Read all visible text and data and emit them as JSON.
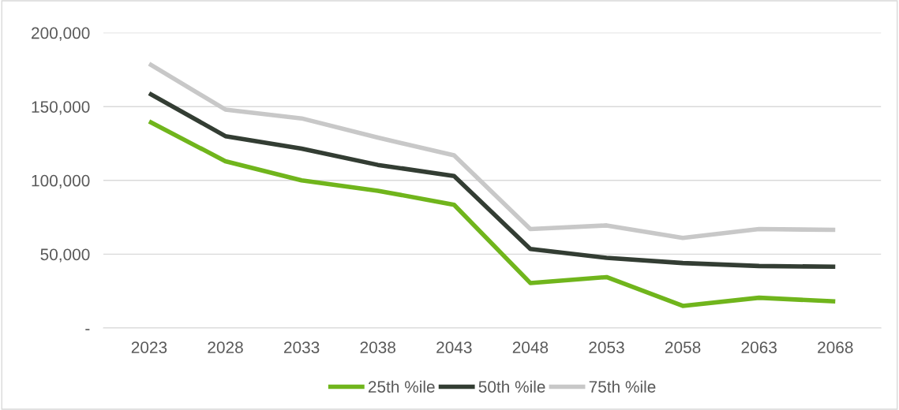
{
  "chart_data": {
    "type": "line",
    "categories": [
      "2023",
      "2028",
      "2033",
      "2038",
      "2043",
      "2048",
      "2053",
      "2058",
      "2063",
      "2068"
    ],
    "series": [
      {
        "name": "25th %ile",
        "color": "#70b51c",
        "values": [
          140000,
          113000,
          100000,
          93000,
          83500,
          30500,
          34500,
          15000,
          20500,
          18000
        ]
      },
      {
        "name": "50th %ile",
        "color": "#333d33",
        "values": [
          159000,
          130000,
          121500,
          110500,
          103000,
          53500,
          47500,
          44000,
          42000,
          41500
        ]
      },
      {
        "name": "75th %ile",
        "color": "#c8c8c8",
        "values": [
          179000,
          148000,
          142000,
          129000,
          117000,
          67000,
          69500,
          61000,
          67000,
          66500
        ]
      }
    ],
    "ylim": [
      0,
      200000
    ],
    "yticks": [
      {
        "value": 0,
        "label": "-"
      },
      {
        "value": 50000,
        "label": "50,000"
      },
      {
        "value": 100000,
        "label": "100,000"
      },
      {
        "value": 150000,
        "label": "150,000"
      },
      {
        "value": 200000,
        "label": "200,000"
      }
    ],
    "grid": "y",
    "legend": "bottom",
    "marker": "none",
    "line_style": "solid"
  }
}
